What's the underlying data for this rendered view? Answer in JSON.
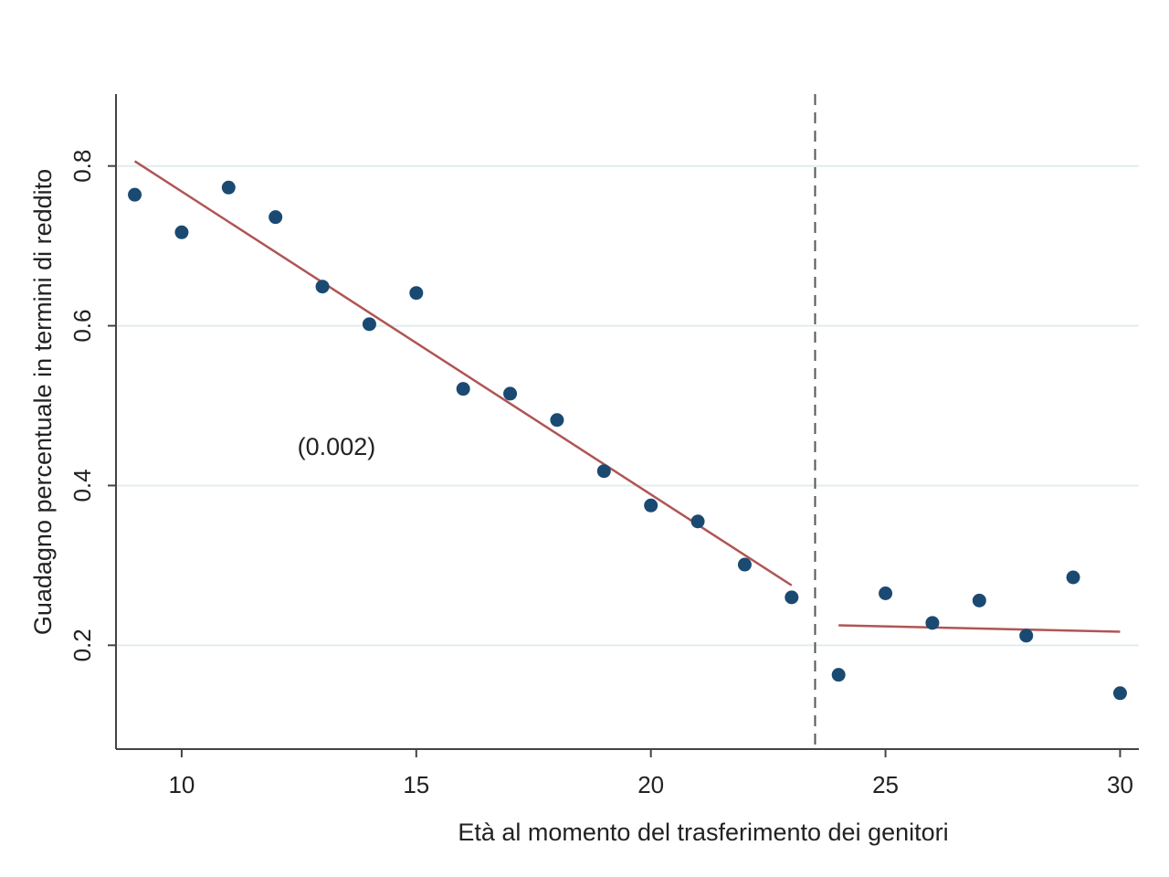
{
  "chart_data": {
    "type": "scatter",
    "title": "",
    "xlabel": "Età al momento del trasferimento dei genitori",
    "ylabel": "Guadagno percentuale in termini di reddito",
    "xlim": [
      8.6,
      30.4
    ],
    "ylim": [
      0.07,
      0.89
    ],
    "x_ticks": [
      {
        "value": 10,
        "label": "10"
      },
      {
        "value": 15,
        "label": "15"
      },
      {
        "value": 20,
        "label": "20"
      },
      {
        "value": 25,
        "label": "25"
      },
      {
        "value": 30,
        "label": "30"
      }
    ],
    "y_ticks": [
      {
        "value": 0.2,
        "label": "0.2"
      },
      {
        "value": 0.4,
        "label": "0.4"
      },
      {
        "value": 0.6,
        "label": "0.6"
      },
      {
        "value": 0.8,
        "label": "0.8"
      }
    ],
    "grid": "horizontal",
    "points": {
      "x": [
        9,
        10,
        11,
        12,
        13,
        14,
        15,
        16,
        17,
        18,
        19,
        20,
        21,
        22,
        23,
        24,
        25,
        26,
        27,
        28,
        29,
        30
      ],
      "y": [
        0.764,
        0.717,
        0.773,
        0.736,
        0.649,
        0.602,
        0.641,
        0.521,
        0.515,
        0.482,
        0.418,
        0.375,
        0.355,
        0.301,
        0.26,
        0.163,
        0.265,
        0.228,
        0.256,
        0.212,
        0.285,
        0.14
      ],
      "color": "#1a4a72"
    },
    "fit_lines": [
      {
        "x": [
          9,
          23
        ],
        "y": [
          0.806,
          0.275
        ],
        "color": "#b05555"
      },
      {
        "x": [
          24,
          30
        ],
        "y": [
          0.225,
          0.217
        ],
        "color": "#b05555"
      }
    ],
    "cutoff": {
      "x": 23.5,
      "style": "dashed",
      "color": "#555555"
    },
    "annotations": [
      {
        "text": "(0.002)",
        "x": 13.3,
        "y": 0.438
      }
    ]
  }
}
